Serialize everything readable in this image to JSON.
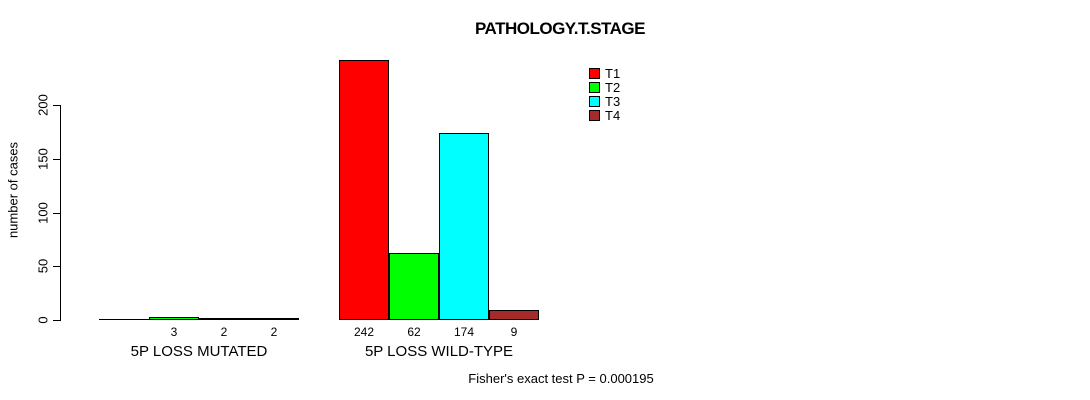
{
  "chart_data": {
    "type": "bar",
    "title": "PATHOLOGY.T.STAGE",
    "categories": [
      "5P LOSS MUTATED",
      "5P LOSS WILD-TYPE"
    ],
    "series": [
      {
        "name": "T1",
        "color": "#FF0000",
        "values": [
          0,
          242
        ]
      },
      {
        "name": "T2",
        "color": "#00FF00",
        "values": [
          3,
          62
        ]
      },
      {
        "name": "T3",
        "color": "#00FFFF",
        "values": [
          2,
          174
        ]
      },
      {
        "name": "T4",
        "color": "#A52A2A",
        "values": [
          2,
          9
        ]
      }
    ],
    "bar_value_labels": [
      [
        "",
        "3",
        "2",
        "2"
      ],
      [
        "242",
        "62",
        "174",
        "9"
      ]
    ],
    "xlabel": "",
    "ylabel": "number of cases",
    "yticks": [
      0,
      50,
      100,
      150,
      200
    ],
    "ylim": [
      0,
      250
    ],
    "grid": false,
    "legend_position": "top-right",
    "bar_border_color": "#000000",
    "background_color": "#FFFFFF"
  },
  "footer": {
    "caption": "Fisher's exact test P = 0.000195"
  }
}
